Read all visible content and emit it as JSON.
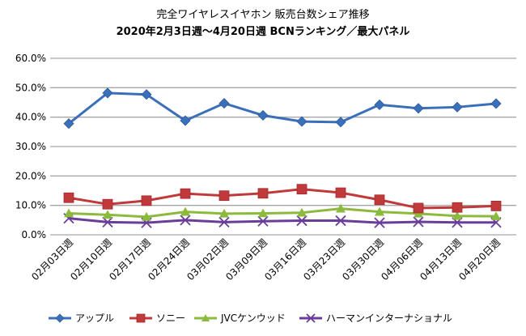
{
  "chart_data": {
    "type": "line",
    "title": "完全ワイヤレスイヤホン 販売台数シェア推移",
    "subtitle": "2020年2月3日週〜4月20日週  BCNランキング／最大パネル",
    "xlabel": "",
    "ylabel": "",
    "ylim": [
      0,
      60
    ],
    "yticks": [
      "0.0%",
      "10.0%",
      "20.0%",
      "30.0%",
      "40.0%",
      "50.0%",
      "60.0%"
    ],
    "grid": true,
    "legend_position": "bottom",
    "categories": [
      "02月03日週",
      "02月10日週",
      "02月17日週",
      "02月24日週",
      "03月02日週",
      "03月09日週",
      "03月16日週",
      "03月23日週",
      "03月30日週",
      "04月06日週",
      "04月13日週",
      "04月20日週"
    ],
    "series": [
      {
        "name": "アップル",
        "color": "#3a6fba",
        "marker": "diamond",
        "values": [
          37.8,
          48.2,
          47.7,
          38.8,
          44.7,
          40.6,
          38.5,
          38.3,
          44.2,
          43.0,
          43.4,
          44.6
        ]
      },
      {
        "name": "ソニー",
        "color": "#c0393b",
        "marker": "square",
        "values": [
          12.6,
          10.4,
          11.6,
          14.0,
          13.3,
          14.1,
          15.5,
          14.3,
          11.9,
          9.1,
          9.3,
          9.8
        ]
      },
      {
        "name": "JVCケンウッド",
        "color": "#8cba3d",
        "marker": "triangle",
        "values": [
          7.3,
          6.8,
          6.1,
          7.8,
          7.2,
          7.3,
          7.5,
          8.9,
          7.8,
          7.2,
          6.4,
          6.3
        ]
      },
      {
        "name": "ハーマンインターナショナル",
        "color": "#6a3d9a",
        "marker": "x",
        "values": [
          5.6,
          4.3,
          4.1,
          5.0,
          4.3,
          4.6,
          4.8,
          4.8,
          4.1,
          4.4,
          4.2,
          4.2
        ]
      }
    ]
  }
}
